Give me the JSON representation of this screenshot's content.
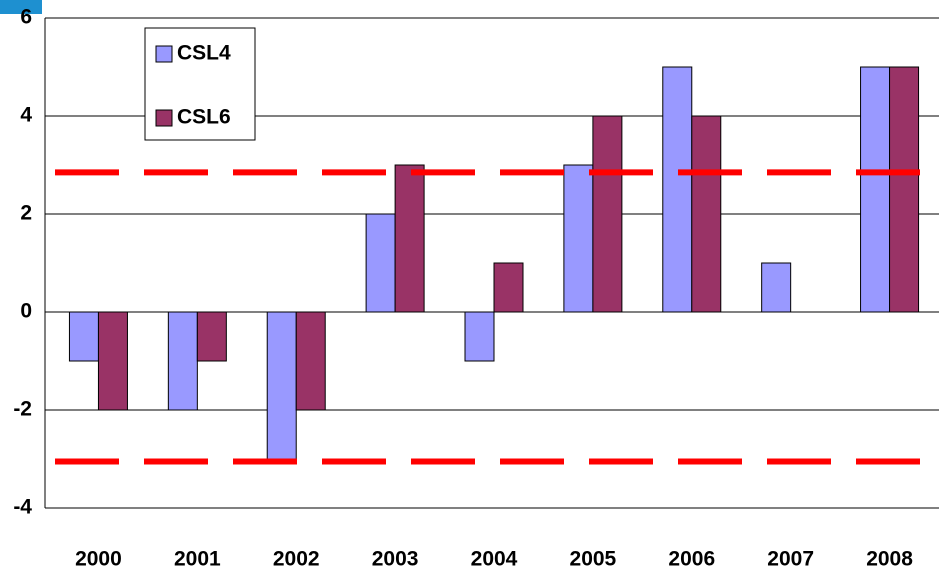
{
  "chart_data": {
    "type": "bar",
    "categories": [
      "2000",
      "2001",
      "2002",
      "2003",
      "2004",
      "2005",
      "2006",
      "2007",
      "2008"
    ],
    "series": [
      {
        "name": "CSL4",
        "color": "#9999ff",
        "values": [
          -1,
          -2,
          -3,
          2,
          -1,
          3,
          5,
          1,
          5
        ]
      },
      {
        "name": "CSL6",
        "color": "#993366",
        "values": [
          -2,
          -1,
          -2,
          3,
          1,
          4,
          4,
          0,
          5
        ]
      }
    ],
    "ylim": [
      -4,
      6
    ],
    "yticks": [
      -4,
      -2,
      0,
      2,
      4,
      6
    ],
    "grid": true,
    "reference_lines": [
      2.85,
      -3.05
    ],
    "reference_color": "#ff0000",
    "legend": "upper left"
  }
}
